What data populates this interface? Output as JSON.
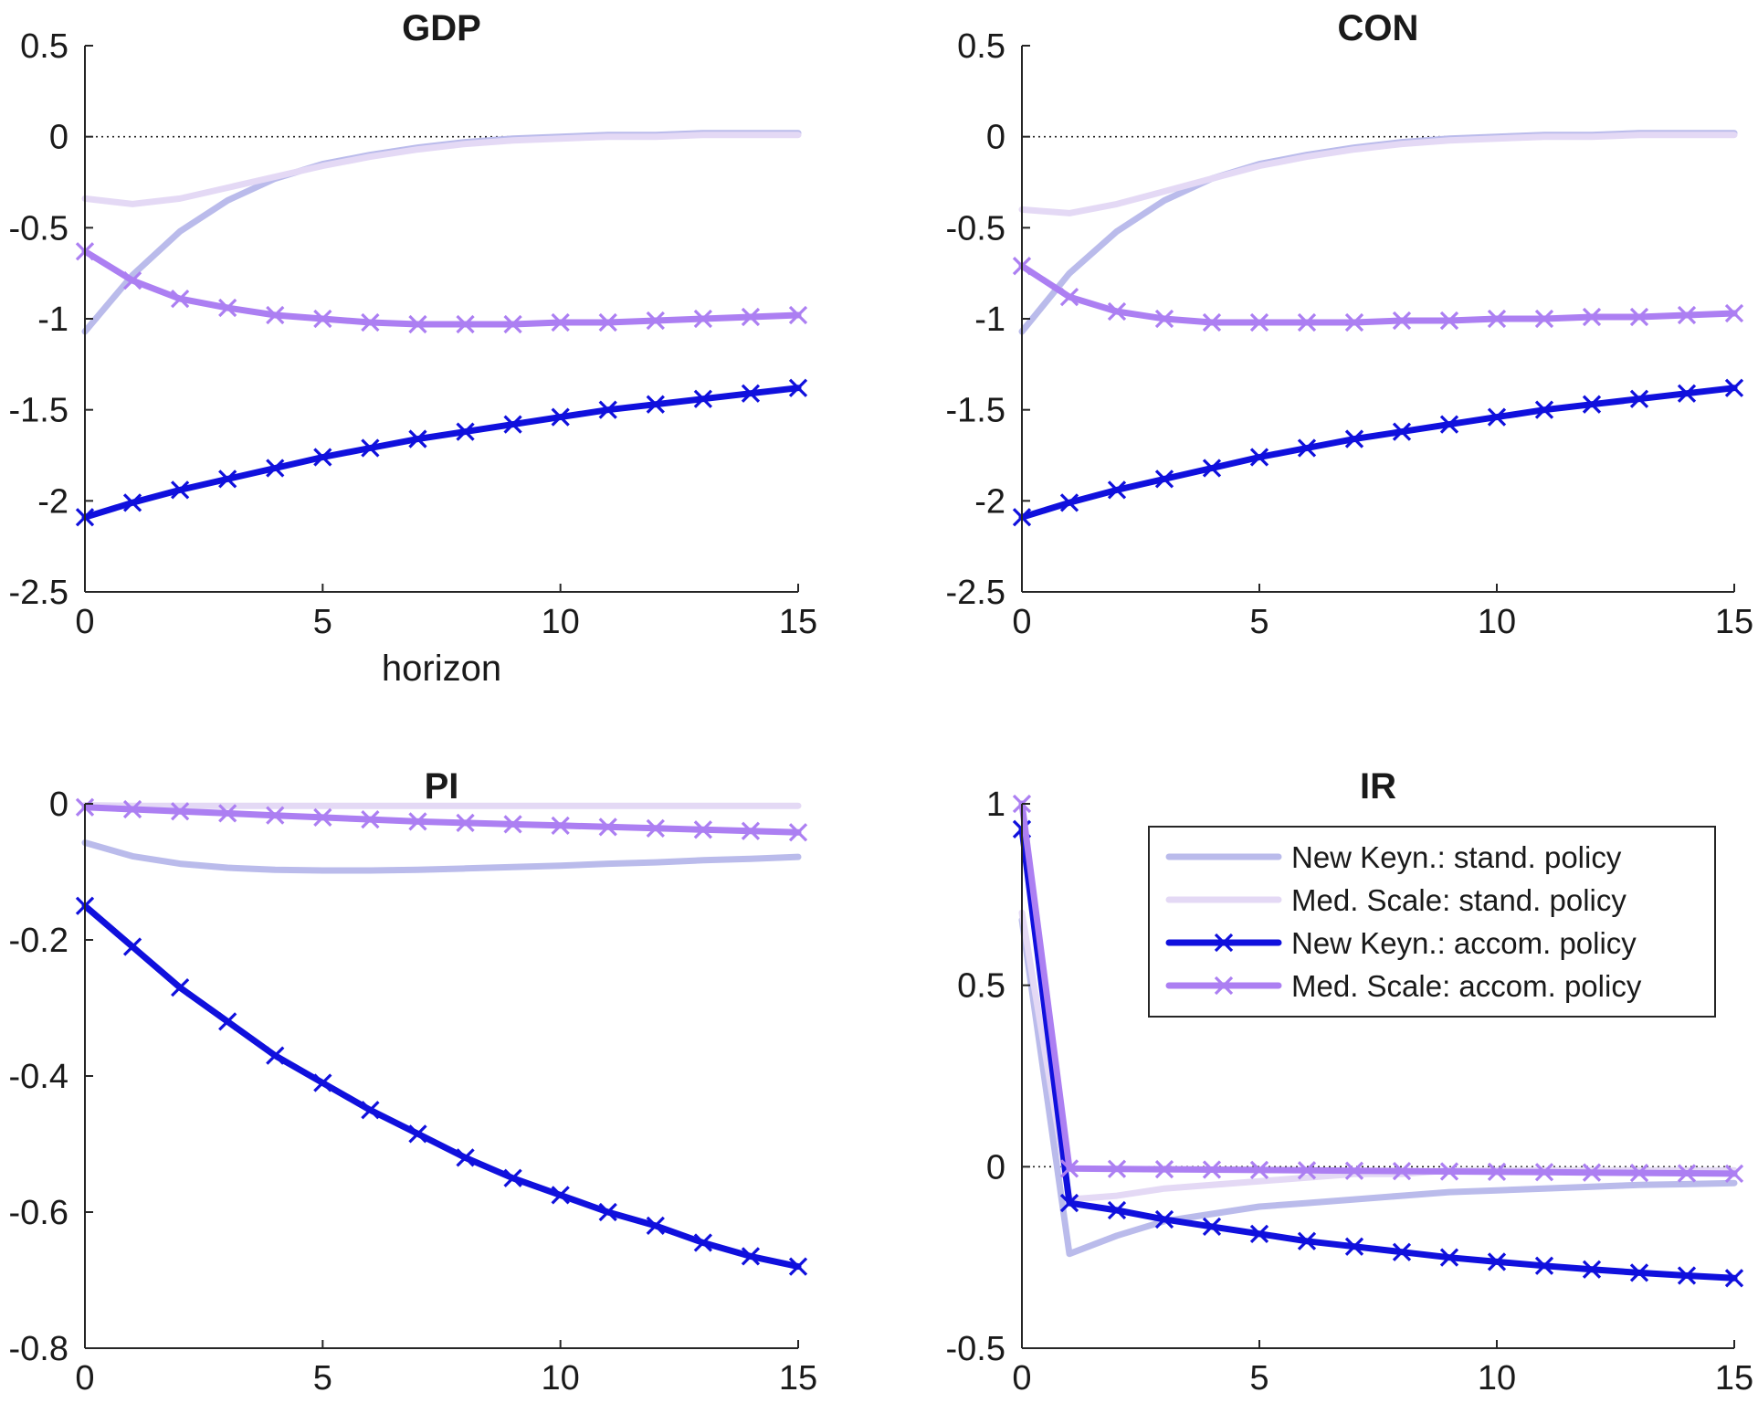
{
  "chart_data": [
    {
      "type": "line",
      "title": "GDP",
      "xlabel": "horizon",
      "ylabel": "",
      "xlim": [
        0,
        15
      ],
      "ylim": [
        -2.5,
        0.5
      ],
      "xticks": [
        0,
        5,
        10,
        15
      ],
      "yticks": [
        0.5,
        0,
        -0.5,
        -1,
        -1.5,
        -2,
        -2.5
      ],
      "xtick_labels": [
        "0",
        "5",
        "10",
        "15"
      ],
      "ytick_labels": [
        "0.5",
        "0",
        "-0.5",
        "-1",
        "-1.5",
        "-2",
        "-2.5"
      ],
      "x": [
        0,
        1,
        2,
        3,
        4,
        5,
        6,
        7,
        8,
        9,
        10,
        11,
        12,
        13,
        14,
        15
      ],
      "series": [
        {
          "values": [
            -1.07,
            -0.76,
            -0.52,
            -0.35,
            -0.23,
            -0.15,
            -0.1,
            -0.06,
            -0.03,
            -0.01,
            0.0,
            0.01,
            0.01,
            0.02,
            0.02,
            0.02
          ]
        },
        {
          "values": [
            -0.34,
            -0.37,
            -0.34,
            -0.28,
            -0.22,
            -0.16,
            -0.11,
            -0.07,
            -0.04,
            -0.02,
            -0.01,
            0.0,
            0.0,
            0.01,
            0.01,
            0.01
          ]
        },
        {
          "values": [
            -2.09,
            -2.01,
            -1.94,
            -1.88,
            -1.82,
            -1.76,
            -1.71,
            -1.66,
            -1.62,
            -1.58,
            -1.54,
            -1.5,
            -1.47,
            -1.44,
            -1.41,
            -1.38
          ]
        },
        {
          "values": [
            -0.63,
            -0.79,
            -0.89,
            -0.94,
            -0.98,
            -1.0,
            -1.02,
            -1.03,
            -1.03,
            -1.03,
            -1.02,
            -1.02,
            -1.01,
            -1.0,
            -0.99,
            -0.98
          ]
        }
      ],
      "grid": false,
      "zero_line": true
    },
    {
      "type": "line",
      "title": "CON",
      "xlabel": "",
      "ylabel": "",
      "xlim": [
        0,
        15
      ],
      "ylim": [
        -2.5,
        0.5
      ],
      "xticks": [
        0,
        5,
        10,
        15
      ],
      "yticks": [
        0.5,
        0,
        -0.5,
        -1,
        -1.5,
        -2,
        -2.5
      ],
      "xtick_labels": [
        "0",
        "5",
        "10",
        "15"
      ],
      "ytick_labels": [
        "0.5",
        "0",
        "-0.5",
        "-1",
        "-1.5",
        "-2",
        "-2.5"
      ],
      "x": [
        0,
        1,
        2,
        3,
        4,
        5,
        6,
        7,
        8,
        9,
        10,
        11,
        12,
        13,
        14,
        15
      ],
      "series": [
        {
          "values": [
            -1.07,
            -0.75,
            -0.52,
            -0.35,
            -0.23,
            -0.15,
            -0.1,
            -0.06,
            -0.03,
            -0.01,
            0.0,
            0.01,
            0.01,
            0.02,
            0.02,
            0.02
          ]
        },
        {
          "values": [
            -0.4,
            -0.42,
            -0.37,
            -0.3,
            -0.23,
            -0.16,
            -0.11,
            -0.07,
            -0.04,
            -0.02,
            -0.01,
            0.0,
            0.0,
            0.01,
            0.01,
            0.01
          ]
        },
        {
          "values": [
            -2.09,
            -2.01,
            -1.94,
            -1.88,
            -1.82,
            -1.76,
            -1.71,
            -1.66,
            -1.62,
            -1.58,
            -1.54,
            -1.5,
            -1.47,
            -1.44,
            -1.41,
            -1.38
          ]
        },
        {
          "values": [
            -0.71,
            -0.88,
            -0.96,
            -1.0,
            -1.02,
            -1.02,
            -1.02,
            -1.02,
            -1.01,
            -1.01,
            -1.0,
            -1.0,
            -0.99,
            -0.99,
            -0.98,
            -0.97
          ]
        }
      ],
      "grid": false,
      "zero_line": true
    },
    {
      "type": "line",
      "title": "PI",
      "xlabel": "",
      "ylabel": "",
      "xlim": [
        0,
        15
      ],
      "ylim": [
        -0.8,
        0
      ],
      "xticks": [
        0,
        5,
        10,
        15
      ],
      "yticks": [
        0,
        -0.2,
        -0.4,
        -0.6,
        -0.8
      ],
      "xtick_labels": [
        "0",
        "5",
        "10",
        "15"
      ],
      "ytick_labels": [
        "0",
        "-0.2",
        "-0.4",
        "-0.6",
        "-0.8"
      ],
      "x": [
        0,
        1,
        2,
        3,
        4,
        5,
        6,
        7,
        8,
        9,
        10,
        11,
        12,
        13,
        14,
        15
      ],
      "series": [
        {
          "values": [
            -0.057,
            -0.077,
            -0.088,
            -0.094,
            -0.097,
            -0.098,
            -0.098,
            -0.097,
            -0.095,
            -0.093,
            -0.091,
            -0.088,
            -0.086,
            -0.083,
            -0.081,
            -0.078
          ]
        },
        {
          "values": [
            -0.002,
            -0.003,
            -0.003,
            -0.003,
            -0.003,
            -0.003,
            -0.003,
            -0.003,
            -0.003,
            -0.003,
            -0.003,
            -0.003,
            -0.003,
            -0.003,
            -0.003,
            -0.003
          ]
        },
        {
          "values": [
            -0.15,
            -0.21,
            -0.27,
            -0.32,
            -0.37,
            -0.41,
            -0.45,
            -0.485,
            -0.52,
            -0.55,
            -0.575,
            -0.6,
            -0.62,
            -0.645,
            -0.665,
            -0.68
          ]
        },
        {
          "values": [
            -0.005,
            -0.008,
            -0.011,
            -0.014,
            -0.017,
            -0.02,
            -0.023,
            -0.026,
            -0.028,
            -0.03,
            -0.032,
            -0.034,
            -0.036,
            -0.038,
            -0.04,
            -0.042
          ]
        }
      ],
      "grid": false,
      "zero_line": true
    },
    {
      "type": "line",
      "title": "IR",
      "xlabel": "",
      "ylabel": "",
      "xlim": [
        0,
        15
      ],
      "ylim": [
        -0.5,
        1
      ],
      "xticks": [
        0,
        5,
        10,
        15
      ],
      "yticks": [
        1,
        0.5,
        0,
        -0.5
      ],
      "xtick_labels": [
        "0",
        "5",
        "10",
        "15"
      ],
      "ytick_labels": [
        "1",
        "0.5",
        "0",
        "-0.5"
      ],
      "x": [
        0,
        1,
        2,
        3,
        4,
        5,
        6,
        7,
        8,
        9,
        10,
        11,
        12,
        13,
        14,
        15
      ],
      "series": [
        {
          "values": [
            0.68,
            -0.24,
            -0.19,
            -0.15,
            -0.13,
            -0.11,
            -0.1,
            -0.09,
            -0.08,
            -0.07,
            -0.065,
            -0.06,
            -0.055,
            -0.05,
            -0.048,
            -0.045
          ]
        },
        {
          "values": [
            0.7,
            -0.09,
            -0.08,
            -0.06,
            -0.05,
            -0.04,
            -0.03,
            -0.02,
            -0.02,
            -0.01,
            -0.01,
            -0.01,
            -0.01,
            -0.01,
            -0.01,
            -0.01
          ]
        },
        {
          "values": [
            0.93,
            -0.1,
            -0.12,
            -0.145,
            -0.165,
            -0.185,
            -0.205,
            -0.22,
            -0.235,
            -0.25,
            -0.262,
            -0.273,
            -0.283,
            -0.292,
            -0.3,
            -0.307
          ]
        },
        {
          "values": [
            1.0,
            -0.005,
            -0.006,
            -0.007,
            -0.008,
            -0.009,
            -0.01,
            -0.011,
            -0.012,
            -0.013,
            -0.014,
            -0.015,
            -0.016,
            -0.017,
            -0.018,
            -0.019
          ]
        }
      ],
      "grid": false,
      "zero_line": true
    }
  ],
  "legend": {
    "placement": "top-right of IR panel",
    "entries": [
      {
        "label": "New Keyn.: stand. policy",
        "color": "#babbeb",
        "marker": "none"
      },
      {
        "label": "Med. Scale: stand. policy",
        "color": "#e4d9f5",
        "marker": "none"
      },
      {
        "label": "New Keyn.: accom. policy",
        "color": "#1010dd",
        "marker": "x"
      },
      {
        "label": "Med. Scale: accom. policy",
        "color": "#ac7ff2",
        "marker": "x"
      }
    ]
  }
}
